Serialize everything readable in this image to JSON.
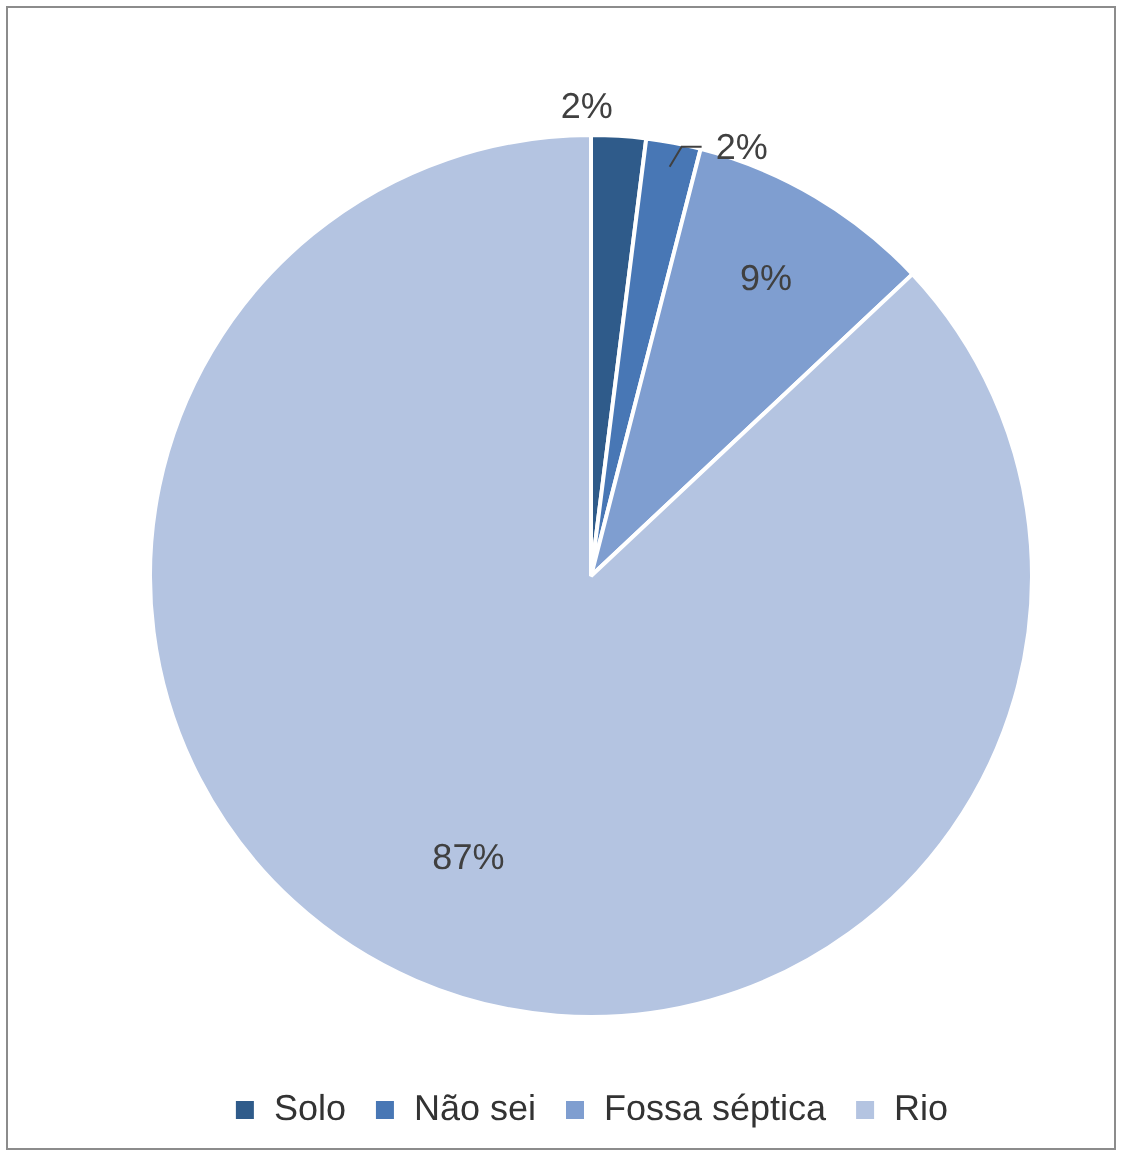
{
  "chart_data": {
    "type": "pie",
    "categories": [
      "Solo",
      "Não sei",
      "Fossa séptica",
      "Rio"
    ],
    "values": [
      2,
      2,
      9,
      87
    ],
    "colors": [
      "#2f5b8a",
      "#4877b5",
      "#7f9ed0",
      "#b4c4e1"
    ],
    "value_labels": [
      "2%",
      "2%",
      "9%",
      "87%"
    ],
    "legend": "bottom"
  }
}
